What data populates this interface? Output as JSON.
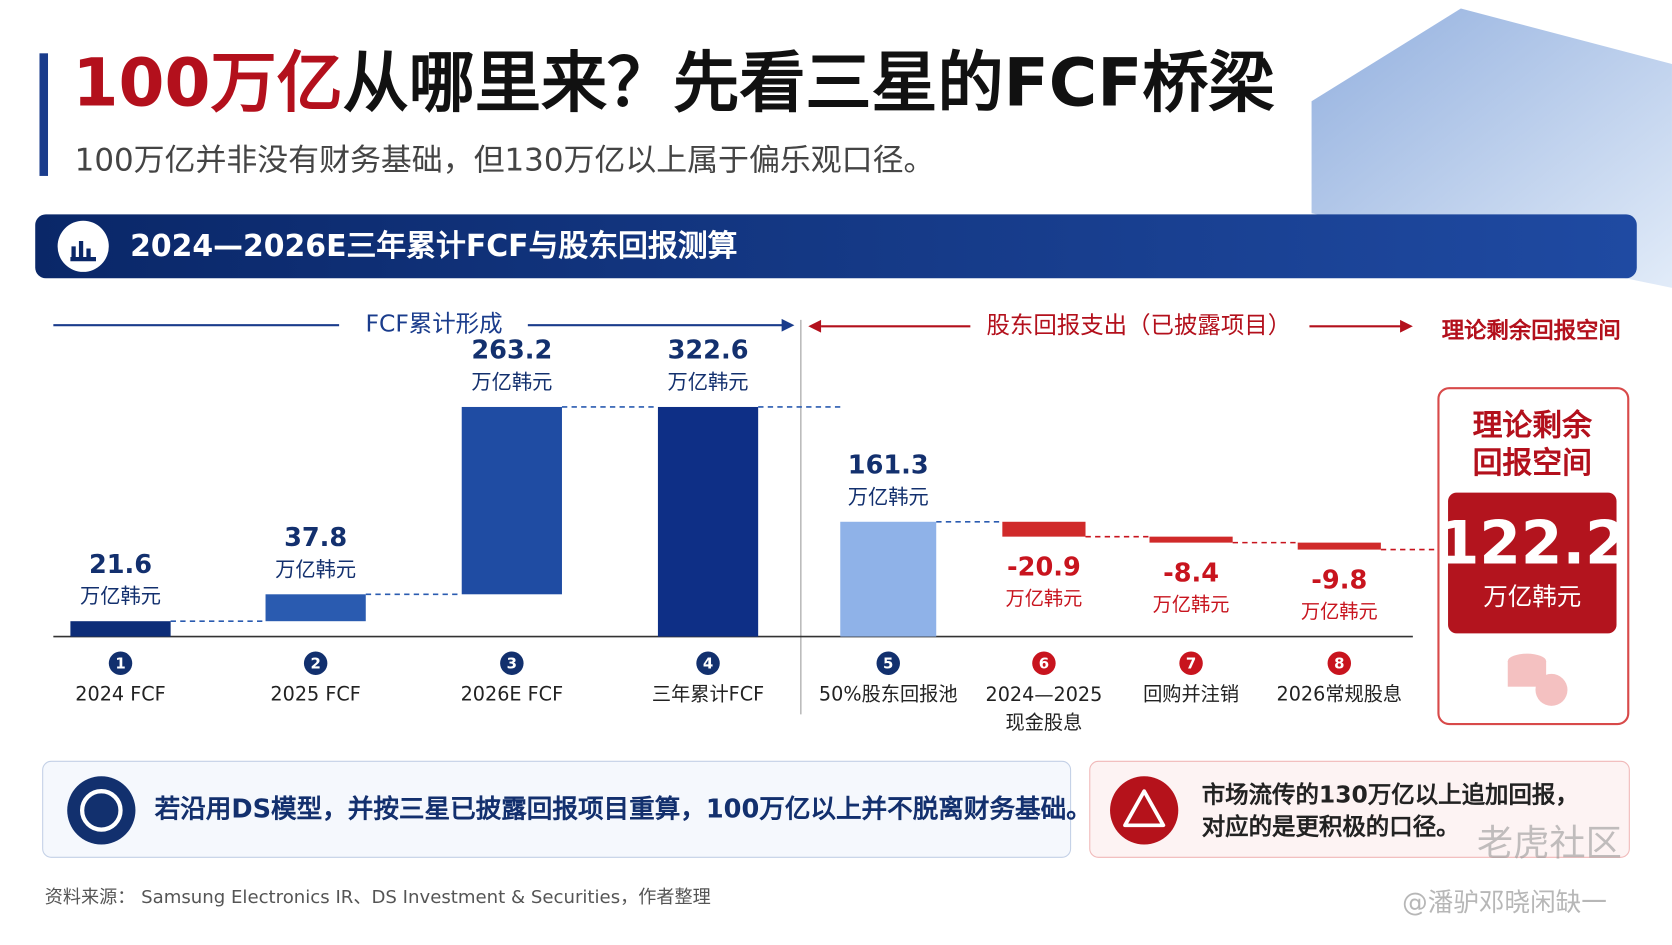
{
  "header": {
    "title_highlight": "100万亿",
    "title_rest": "从哪里来？先看三星的FCF桥梁",
    "subtitle": "100万亿并非没有财务基础，但130万亿以上属于偏乐观口径。"
  },
  "section_title": "2024—2026E三年累计FCF与股东回报测算",
  "chart_data": {
    "type": "waterfall",
    "phase_labels": [
      "FCF累计形成",
      "股东回报支出（已披露项目）",
      "理论剩余回报空间"
    ],
    "categories": [
      "2024 FCF",
      "2025 FCF",
      "2026E FCF",
      "三年累计FCF",
      "50%股东回报池",
      "2024—2025\n现金股息",
      "回购并注销",
      "2026常规股息"
    ],
    "step_numbers": [
      "1",
      "2",
      "3",
      "4",
      "5",
      "6",
      "7",
      "8"
    ],
    "values": [
      21.6,
      37.8,
      263.2,
      322.6,
      161.3,
      -20.9,
      -8.4,
      -9.8
    ],
    "kinds": [
      "increase",
      "increase",
      "increase",
      "total",
      "total",
      "decrease",
      "decrease",
      "decrease"
    ],
    "colors": [
      "#0d2d78",
      "#2a5bb0",
      "#1f4ca3",
      "#0e2f86",
      "#8fb2e8",
      "#d02a2a",
      "#d02a2a",
      "#d02a2a"
    ],
    "unit": "万亿韩元",
    "ylim": [
      0,
      400
    ],
    "result": {
      "title": "理论剩余\n回报空间",
      "value": 122.2
    }
  },
  "notes": {
    "left": "若沿用DS模型，并按三星已披露回报项目重算，100万亿以上并不脱离财务基础。",
    "right": "市场流传的130万亿以上追加回报，\n对应的是更积极的口径。"
  },
  "source": "资料来源：  Samsung Electronics IR、DS Investment & Securities，作者整理",
  "watermark": {
    "brand": "老虎社区",
    "author": "@潘驴邓晓闲缺一"
  }
}
